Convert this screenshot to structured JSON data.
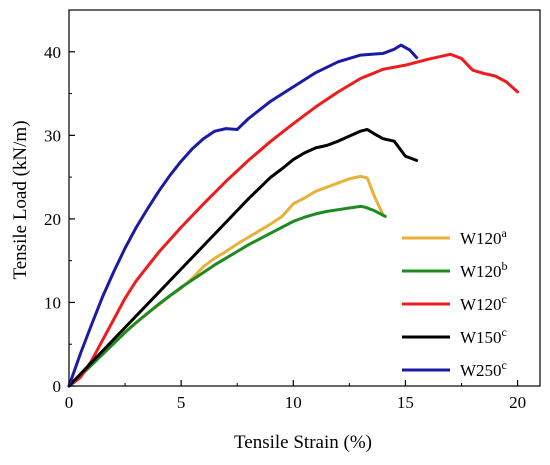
{
  "chart_data": {
    "type": "line",
    "title": "",
    "xlabel": "Tensile Strain (%)",
    "ylabel": "Tensile Load (kN/m)",
    "xlim": [
      0,
      21
    ],
    "ylim": [
      0,
      45
    ],
    "xticks": [
      0,
      5,
      10,
      15,
      20
    ],
    "yticks": [
      0,
      10,
      20,
      30,
      40
    ],
    "grid": false,
    "legend_position": "bottom-right",
    "series": [
      {
        "name": "W120",
        "superscript": "a",
        "color": "#e8b23a",
        "x": [
          0,
          0.5,
          1,
          1.5,
          2,
          2.5,
          3,
          3.5,
          4,
          4.5,
          5,
          5.5,
          6,
          6.5,
          7,
          7.5,
          8,
          8.5,
          9,
          9.5,
          10,
          10.5,
          11,
          11.5,
          12,
          12.5,
          13,
          13.3,
          13.6,
          14.0
        ],
        "y": [
          0,
          1.2,
          2.6,
          4.0,
          5.2,
          6.5,
          7.6,
          8.7,
          9.7,
          10.8,
          11.7,
          12.9,
          14.3,
          15.3,
          16.1,
          17.0,
          17.8,
          18.6,
          19.4,
          20.3,
          21.8,
          22.5,
          23.3,
          23.8,
          24.3,
          24.8,
          25.1,
          24.9,
          22.8,
          20.5
        ]
      },
      {
        "name": "W120",
        "superscript": "b",
        "color": "#1f8a1f",
        "x": [
          0,
          0.5,
          1,
          1.5,
          2,
          2.5,
          3,
          3.5,
          4,
          4.5,
          5,
          5.5,
          6,
          6.5,
          7,
          7.5,
          8,
          8.5,
          9,
          9.5,
          10,
          10.5,
          11,
          11.5,
          12,
          12.5,
          13,
          13.2,
          13.6,
          14.1
        ],
        "y": [
          0,
          1.2,
          2.5,
          3.8,
          5.1,
          6.4,
          7.6,
          8.7,
          9.8,
          10.8,
          11.8,
          12.7,
          13.6,
          14.5,
          15.3,
          16.1,
          16.9,
          17.6,
          18.3,
          19.0,
          19.7,
          20.2,
          20.6,
          20.9,
          21.1,
          21.3,
          21.5,
          21.4,
          21.0,
          20.3
        ]
      },
      {
        "name": "W120",
        "superscript": "c",
        "color": "#ee1c1c",
        "x": [
          0,
          0.5,
          1,
          1.5,
          2,
          2.5,
          3,
          4,
          5,
          6,
          7,
          8,
          9,
          10,
          11,
          12,
          13,
          14,
          15,
          16,
          16.5,
          17,
          17.5,
          18,
          18.5,
          19,
          19.5,
          20
        ],
        "y": [
          0,
          1.0,
          3.0,
          5.5,
          8.0,
          10.5,
          12.6,
          16.0,
          19.0,
          21.8,
          24.5,
          27.0,
          29.3,
          31.4,
          33.4,
          35.2,
          36.8,
          37.9,
          38.4,
          39.1,
          39.4,
          39.7,
          39.2,
          37.8,
          37.4,
          37.1,
          36.4,
          35.2
        ]
      },
      {
        "name": "W150",
        "superscript": "c",
        "color": "#000000",
        "x": [
          0,
          0.5,
          1,
          1.5,
          2,
          2.5,
          3,
          4,
          5,
          6,
          7,
          8,
          9,
          9.5,
          10,
          10.5,
          11,
          11.5,
          12,
          12.5,
          13,
          13.3,
          13.6,
          14,
          14.5,
          15,
          15.5
        ],
        "y": [
          0,
          1.4,
          2.8,
          4.2,
          5.6,
          7.0,
          8.4,
          11.2,
          14.0,
          16.8,
          19.6,
          22.4,
          25.0,
          26.0,
          27.1,
          27.9,
          28.5,
          28.8,
          29.3,
          29.9,
          30.5,
          30.7,
          30.2,
          29.6,
          29.3,
          27.5,
          27.0
        ]
      },
      {
        "name": "W250",
        "superscript": "c",
        "color": "#1a1aa6",
        "x": [
          0,
          0.5,
          1,
          1.5,
          2,
          2.5,
          3,
          3.5,
          4,
          4.5,
          5,
          5.5,
          6,
          6.5,
          7,
          7.5,
          8,
          9,
          10,
          11,
          12,
          12.5,
          13,
          13.5,
          14,
          14.5,
          14.8,
          15.2,
          15.5
        ],
        "y": [
          0,
          3.8,
          7.3,
          10.7,
          13.7,
          16.5,
          19.0,
          21.2,
          23.3,
          25.2,
          26.9,
          28.4,
          29.6,
          30.5,
          30.8,
          30.7,
          32.0,
          34.1,
          35.8,
          37.5,
          38.8,
          39.2,
          39.6,
          39.7,
          39.8,
          40.3,
          40.8,
          40.2,
          39.3
        ]
      }
    ]
  }
}
